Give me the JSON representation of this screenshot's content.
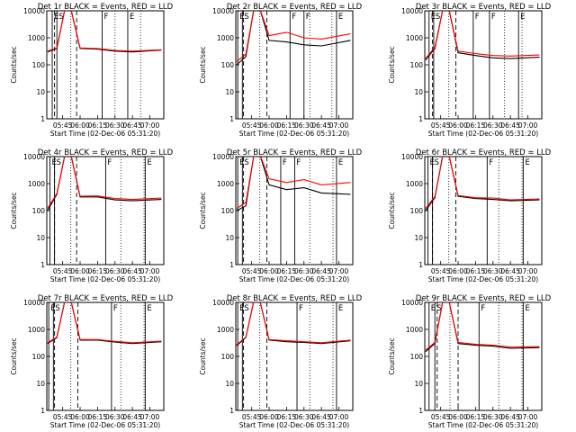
{
  "figure": {
    "ylabel": "Counts/sec",
    "xlabel": "Start Time (02-Dec-06 05:31:20)",
    "time_ticks": [
      "05:45",
      "06:00",
      "06:15",
      "06:30",
      "06:45",
      "07:00"
    ],
    "y_ticks": [
      "1",
      "10",
      "100",
      "1000",
      "10000"
    ],
    "colors": {
      "events": "#000000",
      "lld": "#ff0000"
    }
  },
  "chart_data": [
    {
      "type": "line",
      "title": "Det 1r  BLACK = Events, RED = LLD",
      "x_hours_ticks": [
        "05:45",
        "06:00",
        "06:15",
        "06:30",
        "06:45",
        "07:00"
      ],
      "ylim": [
        1,
        10000
      ],
      "yscale": "log",
      "markers": [
        {
          "label": "E",
          "t": "05:36"
        },
        {
          "label": "S",
          "t": "05:40"
        },
        {
          "label": "F",
          "t": "06:19"
        },
        {
          "label": "E",
          "t": "06:41"
        }
      ],
      "vlines_dashed": [
        "05:38",
        "05:57"
      ],
      "vlines_dotted": [
        "05:52",
        "06:30",
        "06:52"
      ],
      "series": [
        {
          "name": "Events",
          "color": "#000000",
          "x": [
            "05:32",
            "05:40",
            "05:47",
            "05:52",
            "06:00",
            "06:15",
            "06:30",
            "06:45",
            "07:10"
          ],
          "values": [
            300,
            400,
            12000,
            12000,
            400,
            380,
            320,
            300,
            350
          ]
        },
        {
          "name": "LLD",
          "color": "#ff0000",
          "x": [
            "05:32",
            "05:40",
            "05:47",
            "05:52",
            "06:00",
            "06:15",
            "06:30",
            "06:45",
            "07:10"
          ],
          "values": [
            320,
            420,
            12000,
            12000,
            420,
            400,
            340,
            320,
            360
          ]
        }
      ]
    },
    {
      "type": "line",
      "title": "Det 2r  BLACK = Events, RED = LLD",
      "x_hours_ticks": [
        "05:45",
        "06:00",
        "06:15",
        "06:30",
        "06:45",
        "07:00"
      ],
      "ylim": [
        1,
        10000
      ],
      "yscale": "log",
      "markers": [
        {
          "label": "E",
          "t": "05:33"
        },
        {
          "label": "S",
          "t": "05:37"
        },
        {
          "label": "F",
          "t": "06:18"
        },
        {
          "label": "F",
          "t": "06:30"
        },
        {
          "label": "E",
          "t": "06:58"
        }
      ],
      "vlines_dashed": [
        "05:38",
        "05:58"
      ],
      "vlines_dotted": [
        "05:52",
        "06:35",
        "06:54"
      ],
      "series": [
        {
          "name": "Events",
          "color": "#000000",
          "x": [
            "05:32",
            "05:40",
            "05:47",
            "05:52",
            "06:00",
            "06:15",
            "06:30",
            "06:45",
            "07:10"
          ],
          "values": [
            100,
            200,
            12000,
            12000,
            800,
            700,
            550,
            500,
            800
          ]
        },
        {
          "name": "LLD",
          "color": "#ff0000",
          "x": [
            "05:32",
            "05:40",
            "05:47",
            "05:52",
            "06:00",
            "06:15",
            "06:30",
            "06:45",
            "07:10"
          ],
          "values": [
            130,
            250,
            12000,
            12000,
            1200,
            1600,
            1000,
            900,
            1400
          ]
        }
      ]
    },
    {
      "type": "line",
      "title": "Det 3r  BLACK = Events, RED = LLD",
      "x_hours_ticks": [
        "05:45",
        "06:00",
        "06:15",
        "06:30",
        "06:45",
        "07:00"
      ],
      "ylim": [
        1,
        10000
      ],
      "yscale": "log",
      "markers": [
        {
          "label": "E",
          "t": "05:35"
        },
        {
          "label": "S",
          "t": "05:39"
        },
        {
          "label": "F",
          "t": "06:13"
        },
        {
          "label": "F",
          "t": "06:27"
        },
        {
          "label": "E",
          "t": "06:52"
        }
      ],
      "vlines_dashed": [
        "05:38",
        "05:58"
      ],
      "vlines_dotted": [
        "05:52",
        "06:40",
        "06:55"
      ],
      "series": [
        {
          "name": "Events",
          "color": "#000000",
          "x": [
            "05:32",
            "05:40",
            "05:47",
            "05:52",
            "06:00",
            "06:15",
            "06:30",
            "06:45",
            "07:10"
          ],
          "values": [
            150,
            400,
            12000,
            12000,
            280,
            220,
            180,
            170,
            190
          ]
        },
        {
          "name": "LLD",
          "color": "#ff0000",
          "x": [
            "05:32",
            "05:40",
            "05:47",
            "05:52",
            "06:00",
            "06:15",
            "06:30",
            "06:45",
            "07:10"
          ],
          "values": [
            170,
            450,
            12000,
            12000,
            320,
            260,
            220,
            210,
            230
          ]
        }
      ]
    },
    {
      "type": "line",
      "title": "Det 4r  BLACK = Events, RED = LLD",
      "x_hours_ticks": [
        "05:45",
        "06:00",
        "06:15",
        "06:30",
        "06:45",
        "07:00"
      ],
      "ylim": [
        1,
        10000
      ],
      "yscale": "log",
      "markers": [
        {
          "label": "E",
          "t": "05:34"
        },
        {
          "label": "S",
          "t": "05:38"
        },
        {
          "label": "F",
          "t": "06:22"
        },
        {
          "label": "E",
          "t": "06:56"
        }
      ],
      "vlines_dashed": [
        "05:38",
        "05:57"
      ],
      "vlines_dotted": [
        "05:52",
        "06:35",
        "06:55"
      ],
      "series": [
        {
          "name": "Events",
          "color": "#000000",
          "x": [
            "05:32",
            "05:40",
            "05:47",
            "05:52",
            "06:00",
            "06:15",
            "06:30",
            "06:45",
            "07:10"
          ],
          "values": [
            100,
            400,
            12000,
            12000,
            320,
            320,
            250,
            230,
            260
          ]
        },
        {
          "name": "LLD",
          "color": "#ff0000",
          "x": [
            "05:32",
            "05:40",
            "05:47",
            "05:52",
            "06:00",
            "06:15",
            "06:30",
            "06:45",
            "07:10"
          ],
          "values": [
            120,
            430,
            12000,
            12000,
            340,
            350,
            280,
            260,
            290
          ]
        }
      ]
    },
    {
      "type": "line",
      "title": "Det 5r  BLACK = Events, RED = LLD",
      "x_hours_ticks": [
        "05:45",
        "06:00",
        "06:15",
        "06:30",
        "06:45",
        "07:00"
      ],
      "ylim": [
        1,
        10000
      ],
      "yscale": "log",
      "markers": [
        {
          "label": "E",
          "t": "05:33"
        },
        {
          "label": "S",
          "t": "05:37"
        },
        {
          "label": "F",
          "t": "06:10"
        },
        {
          "label": "F",
          "t": "06:22"
        },
        {
          "label": "E",
          "t": "06:58"
        }
      ],
      "vlines_dashed": [
        "05:38",
        "05:58"
      ],
      "vlines_dotted": [
        "05:52",
        "06:35",
        "06:55"
      ],
      "series": [
        {
          "name": "Events",
          "color": "#000000",
          "x": [
            "05:32",
            "05:40",
            "05:47",
            "05:52",
            "06:00",
            "06:15",
            "06:30",
            "06:45",
            "07:10"
          ],
          "values": [
            100,
            150,
            12000,
            12000,
            900,
            600,
            700,
            450,
            400
          ]
        },
        {
          "name": "LLD",
          "color": "#ff0000",
          "x": [
            "05:32",
            "05:40",
            "05:47",
            "05:52",
            "06:00",
            "06:15",
            "06:30",
            "06:45",
            "07:10"
          ],
          "values": [
            120,
            200,
            12000,
            12000,
            1500,
            1100,
            1400,
            900,
            1100
          ]
        }
      ]
    },
    {
      "type": "line",
      "title": "Det 6r  BLACK = Events, RED = LLD",
      "x_hours_ticks": [
        "05:45",
        "06:00",
        "06:15",
        "06:30",
        "06:45",
        "07:00"
      ],
      "ylim": [
        1,
        10000
      ],
      "yscale": "log",
      "markers": [
        {
          "label": "E",
          "t": "05:34"
        },
        {
          "label": "S",
          "t": "05:38"
        },
        {
          "label": "F",
          "t": "06:25"
        },
        {
          "label": "E",
          "t": "06:56"
        }
      ],
      "vlines_dashed": [
        "05:38",
        "05:58"
      ],
      "vlines_dotted": [
        "05:52",
        "06:35",
        "06:55"
      ],
      "series": [
        {
          "name": "Events",
          "color": "#000000",
          "x": [
            "05:32",
            "05:40",
            "05:47",
            "05:52",
            "06:00",
            "06:15",
            "06:30",
            "06:45",
            "07:10"
          ],
          "values": [
            100,
            300,
            12000,
            12000,
            340,
            280,
            260,
            230,
            250
          ]
        },
        {
          "name": "LLD",
          "color": "#ff0000",
          "x": [
            "05:32",
            "05:40",
            "05:47",
            "05:52",
            "06:00",
            "06:15",
            "06:30",
            "06:45",
            "07:10"
          ],
          "values": [
            120,
            330,
            12000,
            12000,
            360,
            300,
            290,
            250,
            270
          ]
        }
      ]
    },
    {
      "type": "line",
      "title": "Det 7r  BLACK = Events, RED = LLD",
      "x_hours_ticks": [
        "05:45",
        "06:00",
        "06:15",
        "06:30",
        "06:45",
        "07:00"
      ],
      "ylim": [
        1,
        10000
      ],
      "yscale": "log",
      "markers": [
        {
          "label": "E",
          "t": "05:33"
        },
        {
          "label": "S",
          "t": "05:37"
        },
        {
          "label": "F",
          "t": "06:27"
        },
        {
          "label": "E",
          "t": "06:56"
        }
      ],
      "vlines_dashed": [
        "05:38",
        "05:58"
      ],
      "vlines_dotted": [
        "05:52",
        "06:35",
        "06:55"
      ],
      "series": [
        {
          "name": "Events",
          "color": "#000000",
          "x": [
            "05:32",
            "05:40",
            "05:47",
            "05:52",
            "06:00",
            "06:15",
            "06:30",
            "06:45",
            "07:10"
          ],
          "values": [
            300,
            500,
            12000,
            12000,
            400,
            400,
            340,
            300,
            350
          ]
        },
        {
          "name": "LLD",
          "color": "#ff0000",
          "x": [
            "05:32",
            "05:40",
            "05:47",
            "05:52",
            "06:00",
            "06:15",
            "06:30",
            "06:45",
            "07:10"
          ],
          "values": [
            320,
            520,
            12000,
            12000,
            420,
            420,
            360,
            320,
            370
          ]
        }
      ]
    },
    {
      "type": "line",
      "title": "Det 8r  BLACK = Events, RED = LLD",
      "x_hours_ticks": [
        "05:45",
        "06:00",
        "06:15",
        "06:30",
        "06:45",
        "07:00"
      ],
      "ylim": [
        1,
        10000
      ],
      "yscale": "log",
      "markers": [
        {
          "label": "E",
          "t": "05:33"
        },
        {
          "label": "S",
          "t": "05:37"
        },
        {
          "label": "F",
          "t": "06:24"
        },
        {
          "label": "E",
          "t": "06:58"
        }
      ],
      "vlines_dashed": [
        "05:38",
        "05:58"
      ],
      "vlines_dotted": [
        "05:52",
        "06:35",
        "06:55"
      ],
      "series": [
        {
          "name": "Events",
          "color": "#000000",
          "x": [
            "05:32",
            "05:40",
            "05:47",
            "05:52",
            "06:00",
            "06:15",
            "06:30",
            "06:45",
            "07:10"
          ],
          "values": [
            250,
            500,
            12000,
            12000,
            400,
            350,
            330,
            300,
            380
          ]
        },
        {
          "name": "LLD",
          "color": "#ff0000",
          "x": [
            "05:32",
            "05:40",
            "05:47",
            "05:52",
            "06:00",
            "06:15",
            "06:30",
            "06:45",
            "07:10"
          ],
          "values": [
            270,
            520,
            12000,
            12000,
            420,
            380,
            350,
            320,
            400
          ]
        }
      ]
    },
    {
      "type": "line",
      "title": "Det 9r  BLACK = Events, RED = LLD",
      "x_hours_ticks": [
        "05:45",
        "06:00",
        "06:15",
        "06:30",
        "06:45",
        "07:00"
      ],
      "ylim": [
        1,
        10000
      ],
      "yscale": "log",
      "markers": [
        {
          "label": "E",
          "t": "05:35"
        },
        {
          "label": "S",
          "t": "05:40"
        },
        {
          "label": "F",
          "t": "06:18"
        },
        {
          "label": "E",
          "t": "06:56"
        }
      ],
      "vlines_dashed": [
        "05:42",
        "06:00"
      ],
      "vlines_dotted": [
        "05:53",
        "06:35",
        "06:55"
      ],
      "series": [
        {
          "name": "Events",
          "color": "#000000",
          "x": [
            "05:32",
            "05:40",
            "05:47",
            "05:52",
            "06:00",
            "06:15",
            "06:30",
            "06:45",
            "07:10"
          ],
          "values": [
            150,
            300,
            12000,
            12000,
            300,
            260,
            240,
            200,
            210
          ]
        },
        {
          "name": "LLD",
          "color": "#ff0000",
          "x": [
            "05:32",
            "05:40",
            "05:47",
            "05:52",
            "06:00",
            "06:15",
            "06:30",
            "06:45",
            "07:10"
          ],
          "values": [
            170,
            330,
            12000,
            12000,
            330,
            280,
            260,
            220,
            230
          ]
        }
      ]
    }
  ]
}
